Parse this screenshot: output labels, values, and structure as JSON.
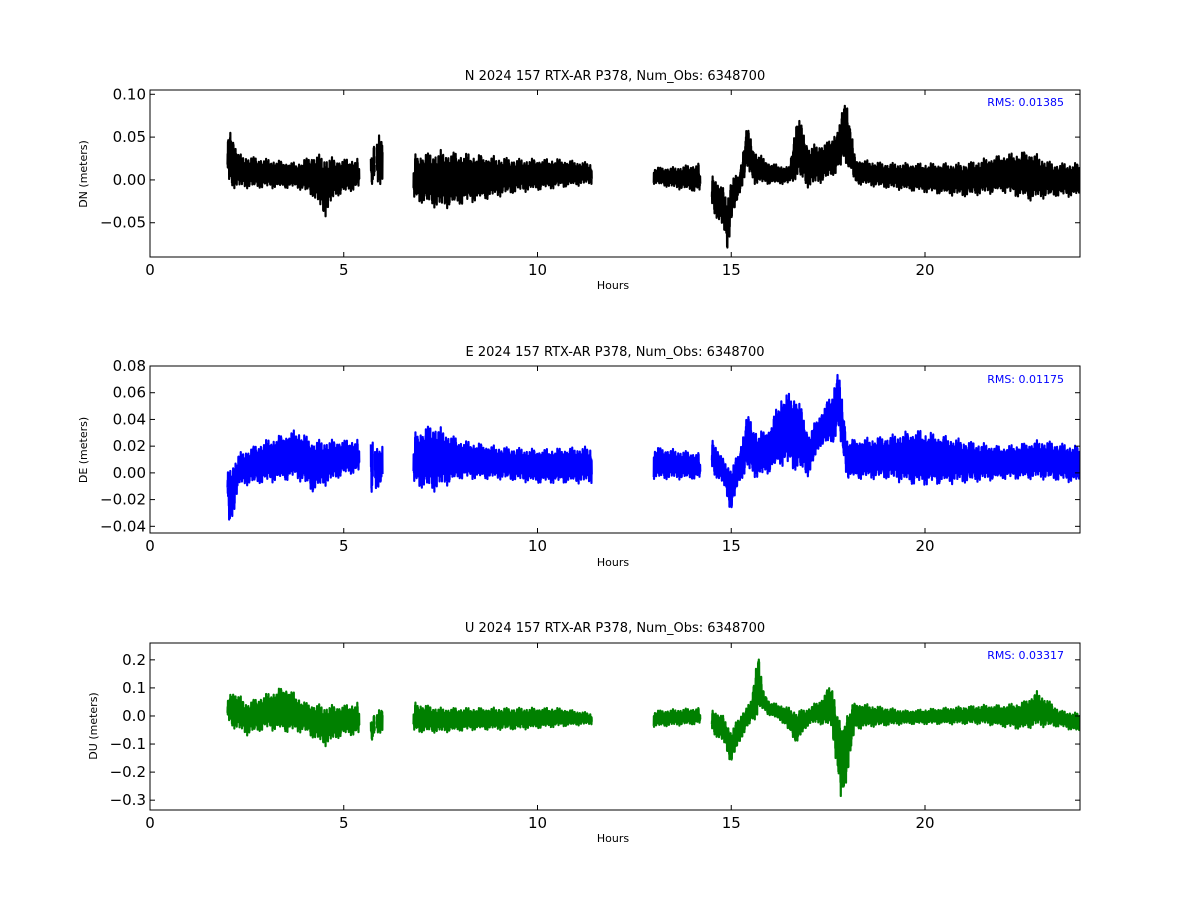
{
  "chart_data": [
    {
      "type": "line",
      "title": "N 2024 157 RTX-AR  P378, Num_Obs: 6348700",
      "xlabel": "Hours",
      "ylabel": "DN (meters)",
      "xlim": [
        0,
        24
      ],
      "ylim": [
        -0.09,
        0.105
      ],
      "xticks": [
        0,
        5,
        10,
        15,
        20
      ],
      "xtick_labels": [
        "0",
        "5",
        "10",
        "15",
        "20"
      ],
      "yticks": [
        -0.05,
        0.0,
        0.05,
        0.1
      ],
      "ytick_labels": [
        "−0.05",
        "0.00",
        "0.05",
        "0.10"
      ],
      "grid": false,
      "annotation": "RMS:  0.01385",
      "series_color": "#000000",
      "annotation_color": "#0000ff",
      "segments": [
        [
          2.0,
          5.4
        ],
        [
          5.7,
          5.8
        ],
        [
          5.85,
          6.0
        ],
        [
          6.8,
          11.4
        ],
        [
          13.0,
          14.2
        ],
        [
          14.5,
          24.0
        ]
      ],
      "envelope": {
        "x": [
          2.0,
          2.05,
          2.3,
          3.0,
          3.8,
          4.2,
          4.5,
          4.8,
          5.4,
          5.7,
          5.9,
          6.0,
          6.8,
          7.5,
          8.5,
          9.5,
          10.5,
          11.4,
          13.0,
          13.5,
          14.2,
          14.5,
          14.8,
          14.9,
          15.0,
          15.2,
          15.4,
          15.6,
          16.0,
          16.5,
          16.7,
          17.0,
          17.5,
          17.8,
          17.95,
          18.2,
          19.0,
          20.0,
          21.0,
          22.0,
          22.7,
          23.3,
          24.0
        ],
        "low": [
          0.0,
          -0.01,
          -0.01,
          -0.01,
          -0.01,
          -0.02,
          -0.045,
          -0.02,
          -0.01,
          -0.01,
          -0.005,
          -0.005,
          -0.025,
          -0.035,
          -0.025,
          -0.015,
          -0.01,
          -0.005,
          -0.005,
          -0.01,
          -0.015,
          -0.035,
          -0.06,
          -0.085,
          -0.05,
          -0.02,
          0.01,
          -0.005,
          -0.005,
          -0.005,
          0.0,
          -0.01,
          0.0,
          0.01,
          0.02,
          -0.005,
          -0.01,
          -0.015,
          -0.02,
          -0.015,
          -0.025,
          -0.02,
          -0.02
        ],
        "high": [
          0.04,
          0.065,
          0.03,
          0.025,
          0.02,
          0.03,
          0.03,
          0.025,
          0.025,
          0.03,
          0.06,
          0.05,
          0.03,
          0.035,
          0.03,
          0.025,
          0.025,
          0.02,
          0.015,
          0.015,
          0.02,
          0.01,
          -0.01,
          -0.02,
          0.005,
          0.005,
          0.065,
          0.035,
          0.02,
          0.015,
          0.08,
          0.04,
          0.045,
          0.065,
          0.105,
          0.025,
          0.02,
          0.02,
          0.02,
          0.03,
          0.035,
          0.02,
          0.02
        ]
      }
    },
    {
      "type": "line",
      "title": "E 2024 157 RTX-AR  P378, Num_Obs: 6348700",
      "xlabel": "Hours",
      "ylabel": "DE (meters)",
      "xlim": [
        0,
        24
      ],
      "ylim": [
        -0.045,
        0.08
      ],
      "xticks": [
        0,
        5,
        10,
        15,
        20
      ],
      "xtick_labels": [
        "0",
        "5",
        "10",
        "15",
        "20"
      ],
      "yticks": [
        -0.04,
        -0.02,
        0.0,
        0.02,
        0.04,
        0.06,
        0.08
      ],
      "ytick_labels": [
        "−0.04",
        "−0.02",
        "0.00",
        "0.02",
        "0.04",
        "0.06",
        "0.08"
      ],
      "grid": false,
      "annotation": "RMS:  0.01175",
      "series_color": "#0000ff",
      "annotation_color": "#0000ff",
      "segments": [
        [
          2.0,
          5.4
        ],
        [
          5.7,
          5.75
        ],
        [
          5.8,
          6.0
        ],
        [
          6.8,
          11.4
        ],
        [
          13.0,
          14.2
        ],
        [
          14.5,
          24.0
        ]
      ],
      "envelope": {
        "x": [
          2.0,
          2.05,
          2.3,
          3.0,
          3.8,
          4.2,
          5.0,
          5.4,
          5.7,
          5.9,
          6.8,
          7.3,
          8.0,
          9.0,
          10.0,
          11.4,
          13.0,
          14.2,
          14.5,
          14.8,
          15.0,
          15.2,
          15.4,
          15.7,
          16.0,
          16.3,
          16.7,
          17.0,
          17.3,
          17.6,
          17.75,
          18.0,
          19.0,
          19.8,
          21.0,
          22.0,
          23.0,
          24.0
        ],
        "low": [
          -0.02,
          -0.045,
          -0.01,
          -0.008,
          -0.005,
          -0.015,
          -0.002,
          0.0,
          -0.02,
          -0.01,
          -0.01,
          -0.015,
          -0.005,
          -0.005,
          -0.008,
          -0.008,
          -0.005,
          -0.005,
          0.0,
          -0.01,
          -0.03,
          -0.008,
          0.0,
          -0.005,
          0.0,
          0.005,
          0.0,
          -0.003,
          0.02,
          0.02,
          0.03,
          -0.005,
          -0.005,
          -0.01,
          -0.008,
          -0.005,
          -0.005,
          -0.008
        ],
        "high": [
          0.0,
          0.005,
          0.015,
          0.025,
          0.033,
          0.025,
          0.025,
          0.025,
          0.028,
          0.02,
          0.03,
          0.038,
          0.025,
          0.02,
          0.018,
          0.02,
          0.02,
          0.015,
          0.028,
          0.01,
          0.005,
          0.015,
          0.045,
          0.03,
          0.035,
          0.06,
          0.06,
          0.03,
          0.045,
          0.06,
          0.08,
          0.025,
          0.028,
          0.033,
          0.025,
          0.02,
          0.025,
          0.02
        ]
      }
    },
    {
      "type": "line",
      "title": "U 2024 157 RTX-AR  P378, Num_Obs: 6348700",
      "xlabel": "Hours",
      "ylabel": "DU (meters)",
      "xlim": [
        0,
        24
      ],
      "ylim": [
        -0.335,
        0.26
      ],
      "xticks": [
        0,
        5,
        10,
        15,
        20
      ],
      "xtick_labels": [
        "0",
        "5",
        "10",
        "15",
        "20"
      ],
      "yticks": [
        -0.3,
        -0.2,
        -0.1,
        0.0,
        0.1,
        0.2
      ],
      "ytick_labels": [
        "−0.3",
        "−0.2",
        "−0.1",
        "0.0",
        "0.1",
        "0.2"
      ],
      "grid": false,
      "annotation": "RMS:  0.03317",
      "series_color": "#008000",
      "annotation_color": "#0000ff",
      "segments": [
        [
          2.0,
          5.4
        ],
        [
          5.7,
          5.8
        ],
        [
          5.85,
          6.0
        ],
        [
          6.8,
          11.4
        ],
        [
          13.0,
          14.2
        ],
        [
          14.5,
          24.0
        ]
      ],
      "envelope": {
        "x": [
          2.0,
          2.1,
          2.5,
          3.0,
          3.5,
          4.0,
          4.5,
          5.0,
          5.4,
          5.7,
          5.9,
          6.8,
          7.5,
          8.5,
          9.5,
          10.5,
          11.4,
          13.0,
          14.2,
          14.5,
          14.8,
          15.0,
          15.3,
          15.5,
          15.7,
          15.8,
          16.0,
          16.3,
          16.7,
          17.0,
          17.3,
          17.6,
          17.85,
          17.95,
          18.2,
          18.6,
          19.5,
          20.5,
          21.5,
          22.0,
          22.5,
          22.9,
          23.5,
          24.0
        ],
        "low": [
          -0.02,
          -0.04,
          -0.07,
          -0.05,
          -0.06,
          -0.06,
          -0.11,
          -0.07,
          -0.07,
          -0.1,
          -0.06,
          -0.06,
          -0.06,
          -0.05,
          -0.05,
          -0.04,
          -0.03,
          -0.04,
          -0.03,
          -0.06,
          -0.1,
          -0.17,
          -0.07,
          -0.03,
          0.0,
          0.02,
          0.0,
          -0.02,
          -0.1,
          -0.03,
          -0.03,
          -0.05,
          -0.34,
          -0.25,
          -0.05,
          -0.04,
          -0.03,
          -0.03,
          -0.03,
          -0.04,
          -0.05,
          -0.04,
          -0.04,
          -0.06
        ],
        "high": [
          0.05,
          0.1,
          0.05,
          0.08,
          0.11,
          0.05,
          0.04,
          0.04,
          0.05,
          -0.01,
          0.03,
          0.05,
          0.03,
          0.03,
          0.03,
          0.03,
          0.01,
          0.02,
          0.03,
          0.03,
          0.0,
          -0.05,
          0.02,
          0.05,
          0.25,
          0.1,
          0.05,
          0.04,
          0.02,
          0.03,
          0.06,
          0.12,
          -0.05,
          0.02,
          0.05,
          0.04,
          0.02,
          0.03,
          0.04,
          0.04,
          0.05,
          0.09,
          0.02,
          0.01
        ]
      }
    }
  ]
}
